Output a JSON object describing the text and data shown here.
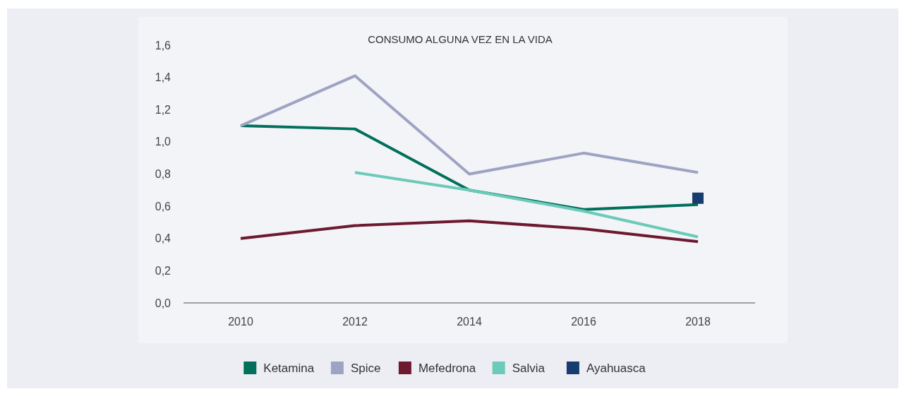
{
  "chart_data": {
    "type": "line",
    "title": "CONSUMO ALGUNA VEZ EN LA VIDA",
    "categories": [
      "2010",
      "2012",
      "2014",
      "2016",
      "2018"
    ],
    "series": [
      {
        "name": "Ketamina",
        "color": "#00705a",
        "values": [
          1.1,
          1.08,
          0.7,
          0.58,
          0.61
        ]
      },
      {
        "name": "Spice",
        "color": "#9ea3c3",
        "values": [
          1.1,
          1.41,
          0.8,
          0.93,
          0.81
        ]
      },
      {
        "name": "Mefedrona",
        "color": "#6d1a30",
        "values": [
          0.4,
          0.48,
          0.51,
          0.46,
          0.38
        ]
      },
      {
        "name": "Salvia",
        "color": "#6ccab9",
        "values": [
          null,
          0.81,
          0.7,
          0.57,
          0.41
        ]
      },
      {
        "name": "Ayahuasca",
        "color": "#173d6e",
        "type": "scatter",
        "marker": "square",
        "values": [
          null,
          null,
          null,
          null,
          0.65
        ]
      }
    ],
    "ylim": [
      0,
      1.6
    ],
    "yticks": [
      {
        "value": 0,
        "label": "0,0"
      },
      {
        "value": 0.2,
        "label": "0,2"
      },
      {
        "value": 0.4,
        "label": "0,4"
      },
      {
        "value": 0.6,
        "label": "0,6"
      },
      {
        "value": 0.8,
        "label": "0,8"
      },
      {
        "value": 1,
        "label": "1,0"
      },
      {
        "value": 1.2,
        "label": "1,2"
      },
      {
        "value": 1.4,
        "label": "1,4"
      },
      {
        "value": 1.6,
        "label": "1,6"
      }
    ],
    "legend": "bottom",
    "grid": false
  }
}
